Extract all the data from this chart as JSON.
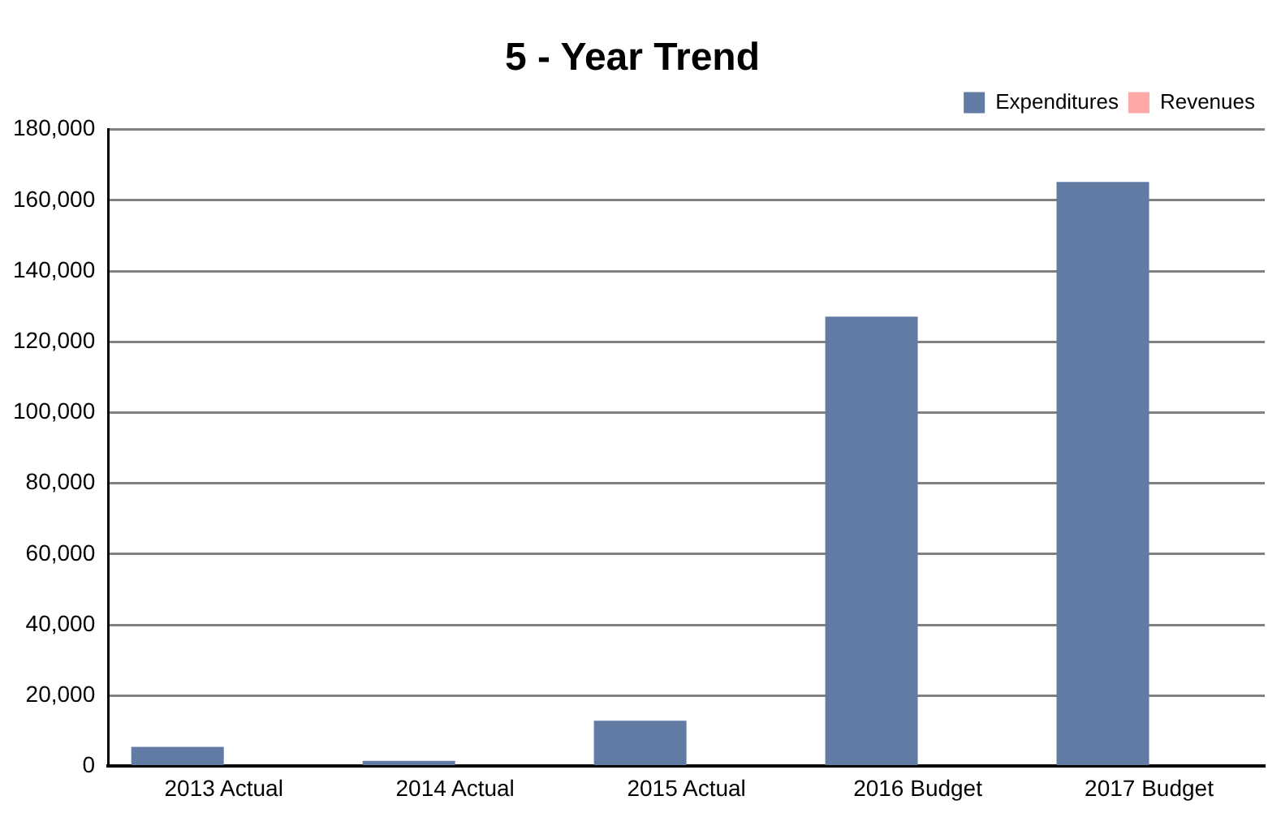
{
  "chart_data": {
    "type": "bar",
    "title": "5 - Year Trend",
    "categories": [
      "2013 Actual",
      "2014 Actual",
      "2015 Actual",
      "2016 Budget",
      "2017 Budget"
    ],
    "series": [
      {
        "name": "Expenditures",
        "color": "#627ba4",
        "values": [
          5500,
          1500,
          12900,
          127100,
          165200
        ]
      },
      {
        "name": "Revenues",
        "color": "#ffa8a8",
        "values": [
          0,
          0,
          0,
          0,
          0
        ]
      }
    ],
    "ylim": [
      0,
      180000
    ],
    "yticks": [
      0,
      {
        "value": 20000,
        "label": "20,000"
      },
      {
        "value": 40000,
        "label": "40,000"
      },
      {
        "value": 60000,
        "label": "60,000"
      },
      {
        "value": 80000,
        "label": "80,000"
      },
      {
        "value": 100000,
        "label": "100,000"
      },
      {
        "value": 120000,
        "label": "120,000"
      },
      {
        "value": 140000,
        "label": "140,000"
      },
      {
        "value": 160000,
        "label": "160,000"
      },
      {
        "value": 180000,
        "label": "180,000"
      }
    ],
    "grid": "y",
    "legend": "top right"
  }
}
